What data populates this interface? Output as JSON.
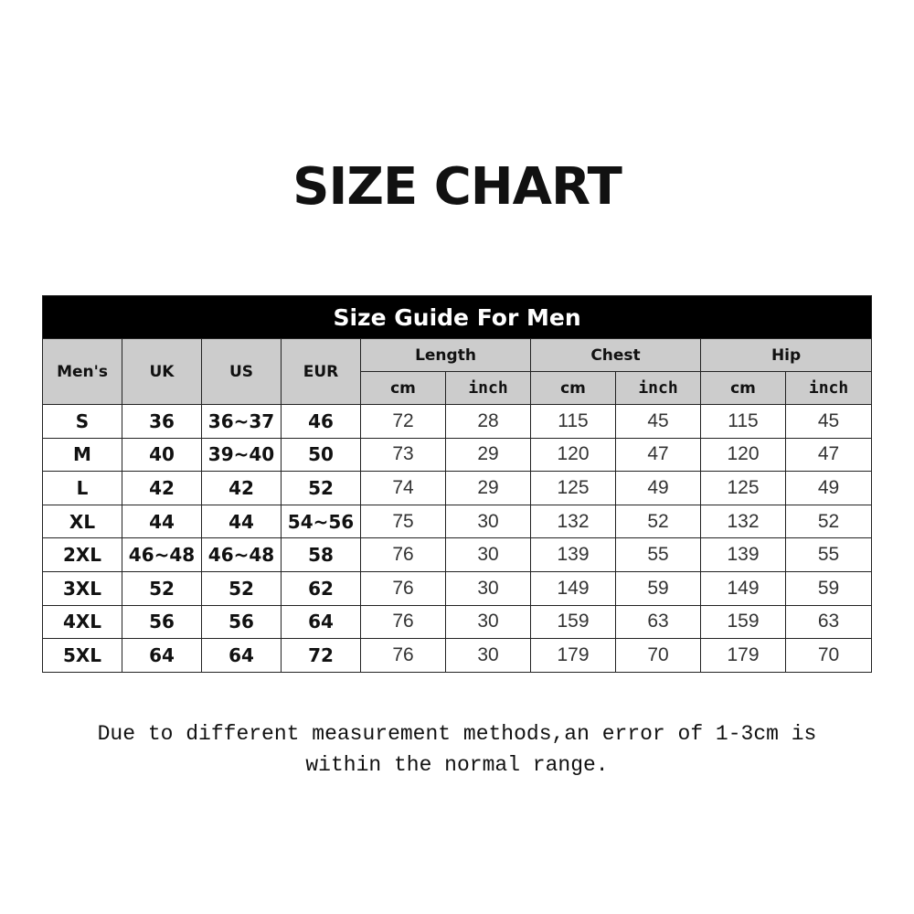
{
  "title": "SIZE CHART",
  "table": {
    "caption": "Size Guide For Men",
    "headers": {
      "size": "Men's",
      "uk": "UK",
      "us": "US",
      "eur": "EUR",
      "groups": [
        "Length",
        "Chest",
        "Hip"
      ],
      "units": [
        "cm",
        "inch",
        "cm",
        "inch",
        "cm",
        "inch"
      ]
    },
    "rows": [
      [
        "S",
        "36",
        "36~37",
        "46",
        "72",
        "28",
        "115",
        "45",
        "115",
        "45"
      ],
      [
        "M",
        "40",
        "39~40",
        "50",
        "73",
        "29",
        "120",
        "47",
        "120",
        "47"
      ],
      [
        "L",
        "42",
        "42",
        "52",
        "74",
        "29",
        "125",
        "49",
        "125",
        "49"
      ],
      [
        "XL",
        "44",
        "44",
        "54~56",
        "75",
        "30",
        "132",
        "52",
        "132",
        "52"
      ],
      [
        "2XL",
        "46~48",
        "46~48",
        "58",
        "76",
        "30",
        "139",
        "55",
        "139",
        "55"
      ],
      [
        "3XL",
        "52",
        "52",
        "62",
        "76",
        "30",
        "149",
        "59",
        "149",
        "59"
      ],
      [
        "4XL",
        "56",
        "56",
        "64",
        "76",
        "30",
        "159",
        "63",
        "159",
        "63"
      ],
      [
        "5XL",
        "64",
        "64",
        "72",
        "76",
        "30",
        "179",
        "70",
        "179",
        "70"
      ]
    ]
  },
  "note": {
    "line1": "Due to different measurement methods,an error of 1-3cm is",
    "line2": "within the normal range."
  }
}
